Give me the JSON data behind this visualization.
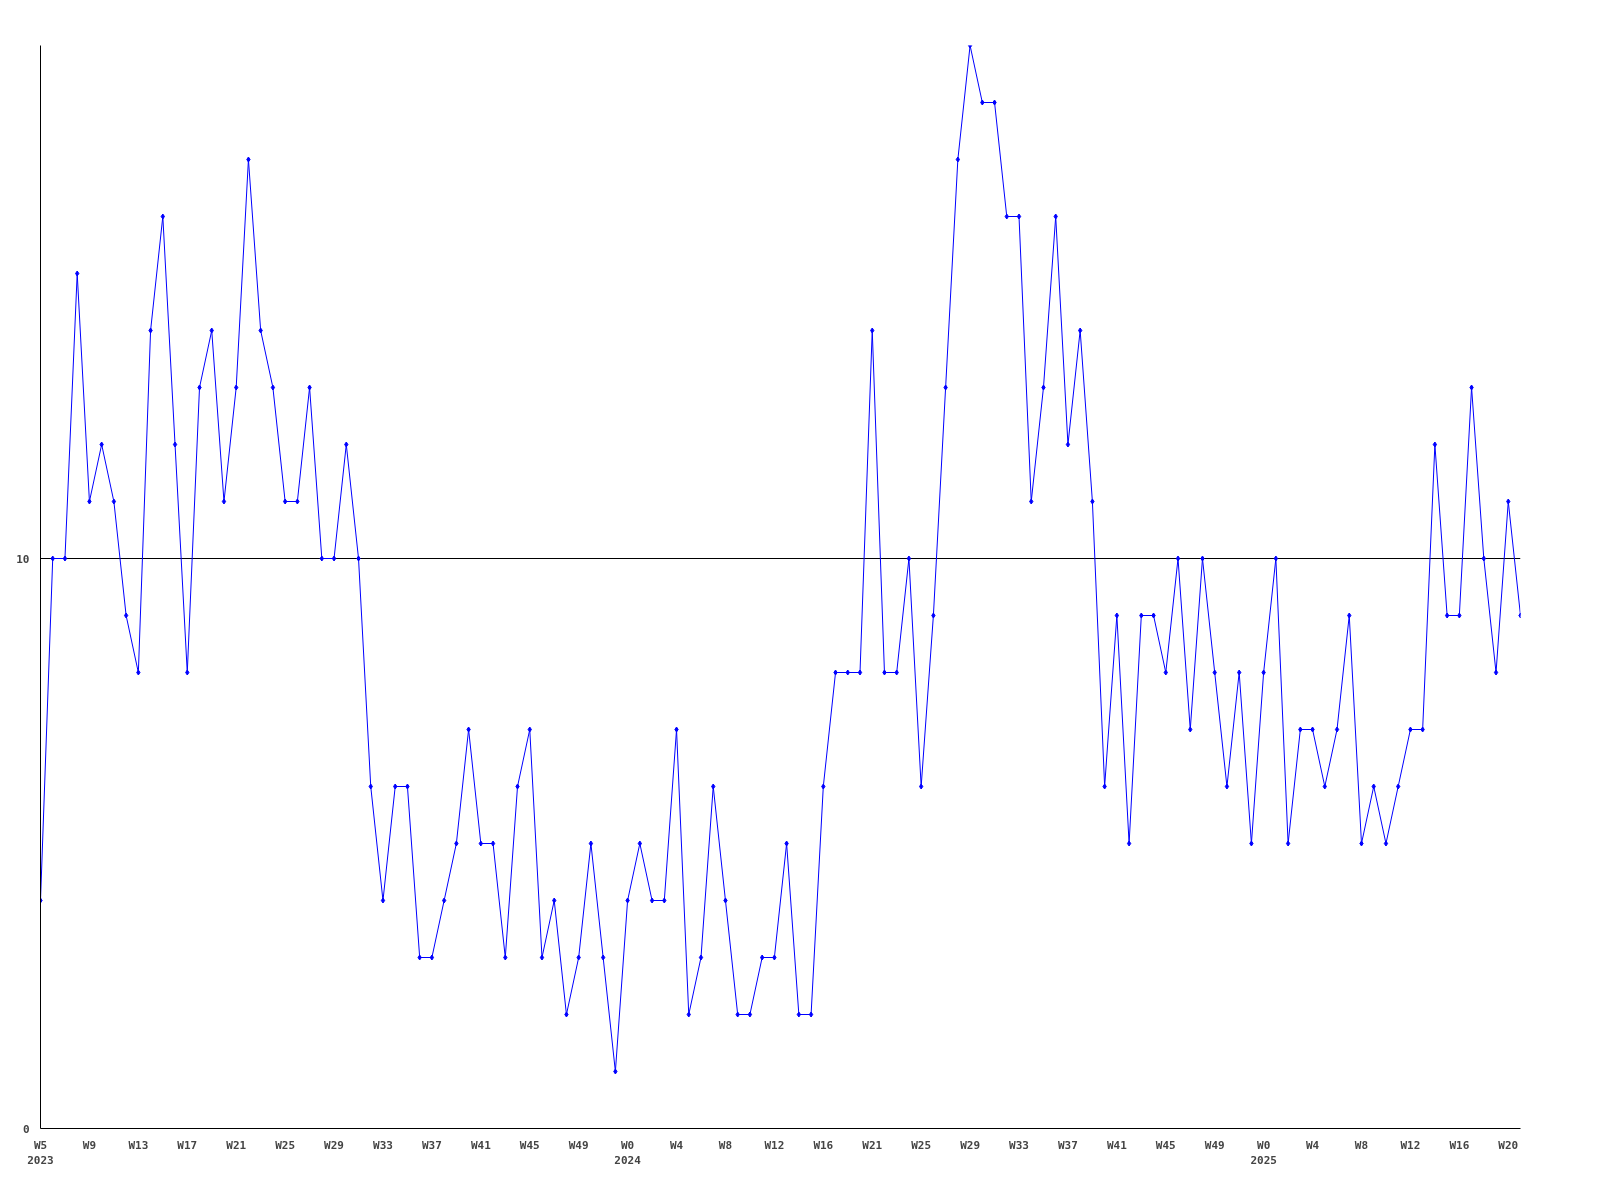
{
  "chart_data": {
    "type": "line",
    "categories": [
      "W5\n2023",
      null,
      null,
      null,
      "W9",
      null,
      null,
      null,
      "W13",
      null,
      null,
      null,
      "W17",
      null,
      null,
      null,
      "W21",
      null,
      null,
      null,
      "W25",
      null,
      null,
      null,
      "W29",
      null,
      null,
      null,
      "W33",
      null,
      null,
      null,
      "W37",
      null,
      null,
      null,
      "W41",
      null,
      null,
      null,
      "W45",
      null,
      null,
      null,
      "W49",
      null,
      null,
      null,
      "W0\n2024",
      null,
      null,
      null,
      "W4",
      null,
      null,
      null,
      "W8",
      null,
      null,
      null,
      "W12",
      null,
      null,
      null,
      "W16",
      null,
      null,
      null,
      "W21",
      null,
      null,
      null,
      "W25",
      null,
      null,
      null,
      "W29",
      null,
      null,
      null,
      "W33",
      null,
      null,
      null,
      "W37",
      null,
      null,
      null,
      "W41",
      null,
      null,
      null,
      "W45",
      null,
      null,
      null,
      "W49",
      null,
      null,
      null,
      "W0\n2025",
      null,
      null,
      null,
      "W4",
      null,
      null,
      null,
      "W8",
      null,
      null,
      null,
      "W12",
      null,
      null,
      null,
      "W16",
      null,
      null,
      null,
      "W20",
      null
    ],
    "series": [
      {
        "color": "#0000ff",
        "values": [
          4,
          10,
          10,
          15,
          11,
          12,
          11,
          9,
          8,
          14,
          16,
          12,
          8,
          13,
          14,
          11,
          13,
          17,
          14,
          13,
          11,
          11,
          13,
          10,
          10,
          12,
          10,
          6,
          4,
          6,
          6,
          3,
          3,
          4,
          5,
          7,
          5,
          5,
          3,
          6,
          7,
          3,
          4,
          2,
          3,
          5,
          3,
          1,
          4,
          5,
          4,
          4,
          7,
          2,
          3,
          6,
          4,
          2,
          2,
          3,
          3,
          5,
          2,
          2,
          6,
          8,
          8,
          8,
          14,
          8,
          8,
          10,
          6,
          9,
          13,
          17,
          19,
          18,
          18,
          16,
          16,
          11,
          13,
          16,
          12,
          14,
          11,
          6,
          9,
          5,
          9,
          9,
          8,
          10,
          7,
          10,
          8,
          6,
          8,
          5,
          8,
          10,
          5,
          7,
          7,
          6,
          7,
          9,
          5,
          6,
          5,
          6,
          7,
          7,
          12,
          9,
          9,
          13,
          10,
          8,
          11,
          9
        ]
      }
    ],
    "ylim": [
      0,
      19
    ],
    "yticks": [
      0,
      10
    ],
    "grid": "y",
    "marker": "diamond",
    "line_style": "solid"
  }
}
